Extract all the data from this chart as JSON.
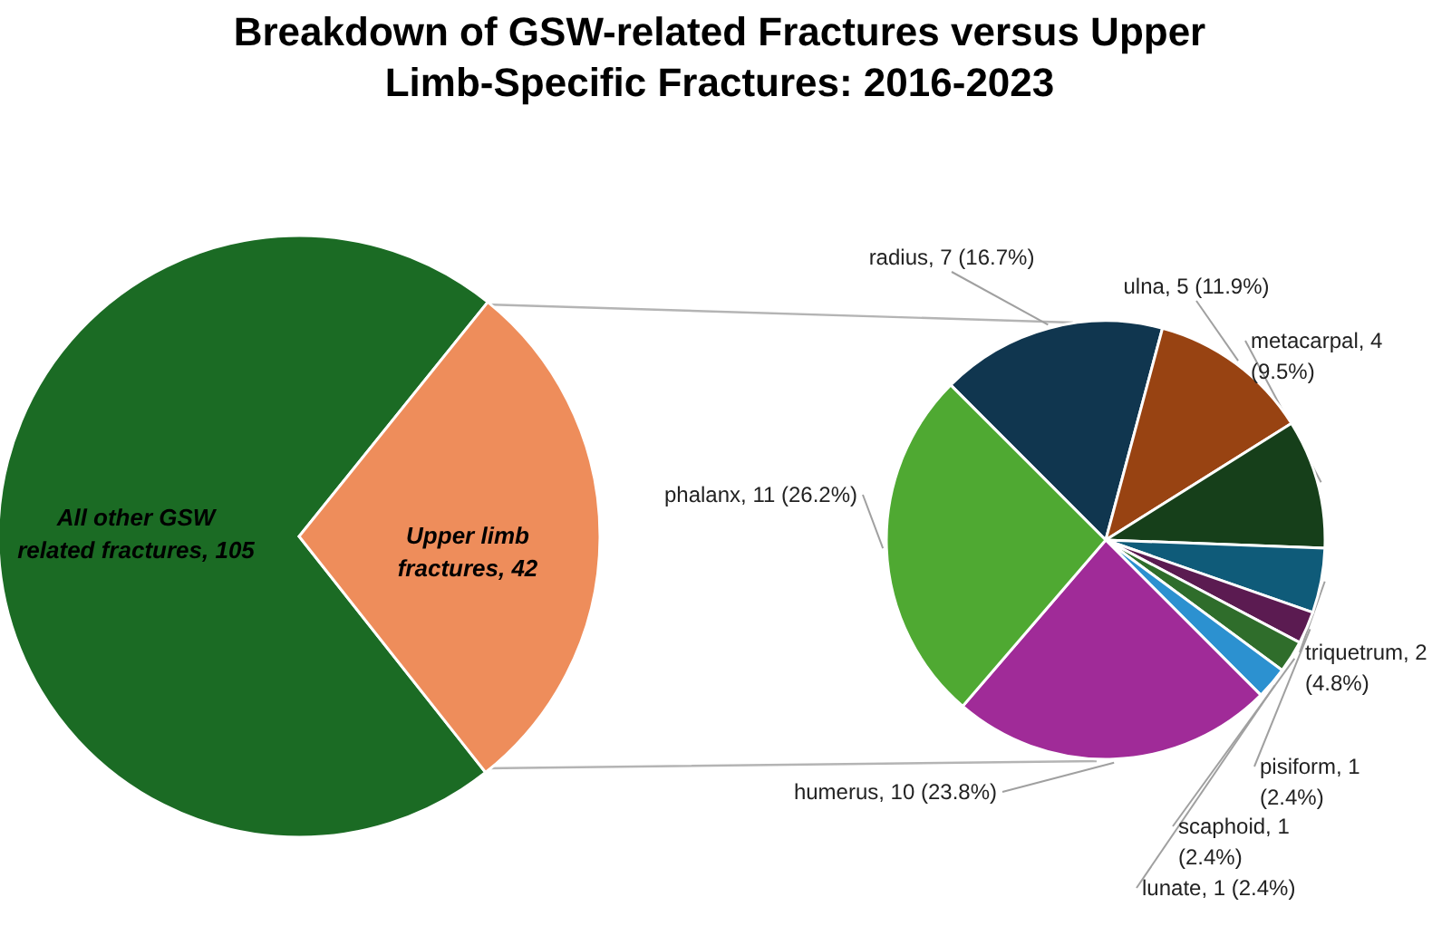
{
  "chart_data": [
    {
      "type": "pie",
      "title": "Breakdown of GSW-related Fractures versus Upper Limb-Specific Fractures: 2016-2023",
      "categories": [
        "All other GSW related fractures",
        "Upper limb fractures"
      ],
      "values": [
        105,
        42
      ],
      "colors": [
        "#1b6b24",
        "#ee8d5b"
      ],
      "value_labels": [
        "105",
        "42"
      ]
    },
    {
      "type": "pie",
      "categories": [
        "radius",
        "ulna",
        "metacarpal",
        "triquetrum",
        "pisiform",
        "scaphoid",
        "lunate",
        "humerus",
        "phalanx"
      ],
      "values": [
        7,
        5,
        4,
        2,
        1,
        1,
        1,
        10,
        11
      ],
      "colors": [
        "#10364f",
        "#984312",
        "#163f1a",
        "#0f5b79",
        "#5b1b51",
        "#2f6d2b",
        "#2c91d0",
        "#a02b98",
        "#4fa932"
      ],
      "value_labels": [
        "7 (16.7%)",
        "5 (11.9%)",
        "4 (9.5%)",
        "2 (4.8%)",
        "1 (2.4%)",
        "1 (2.4%)",
        "1 (2.4%)",
        "10 (23.8%)",
        "11 (26.2%)"
      ]
    }
  ]
}
